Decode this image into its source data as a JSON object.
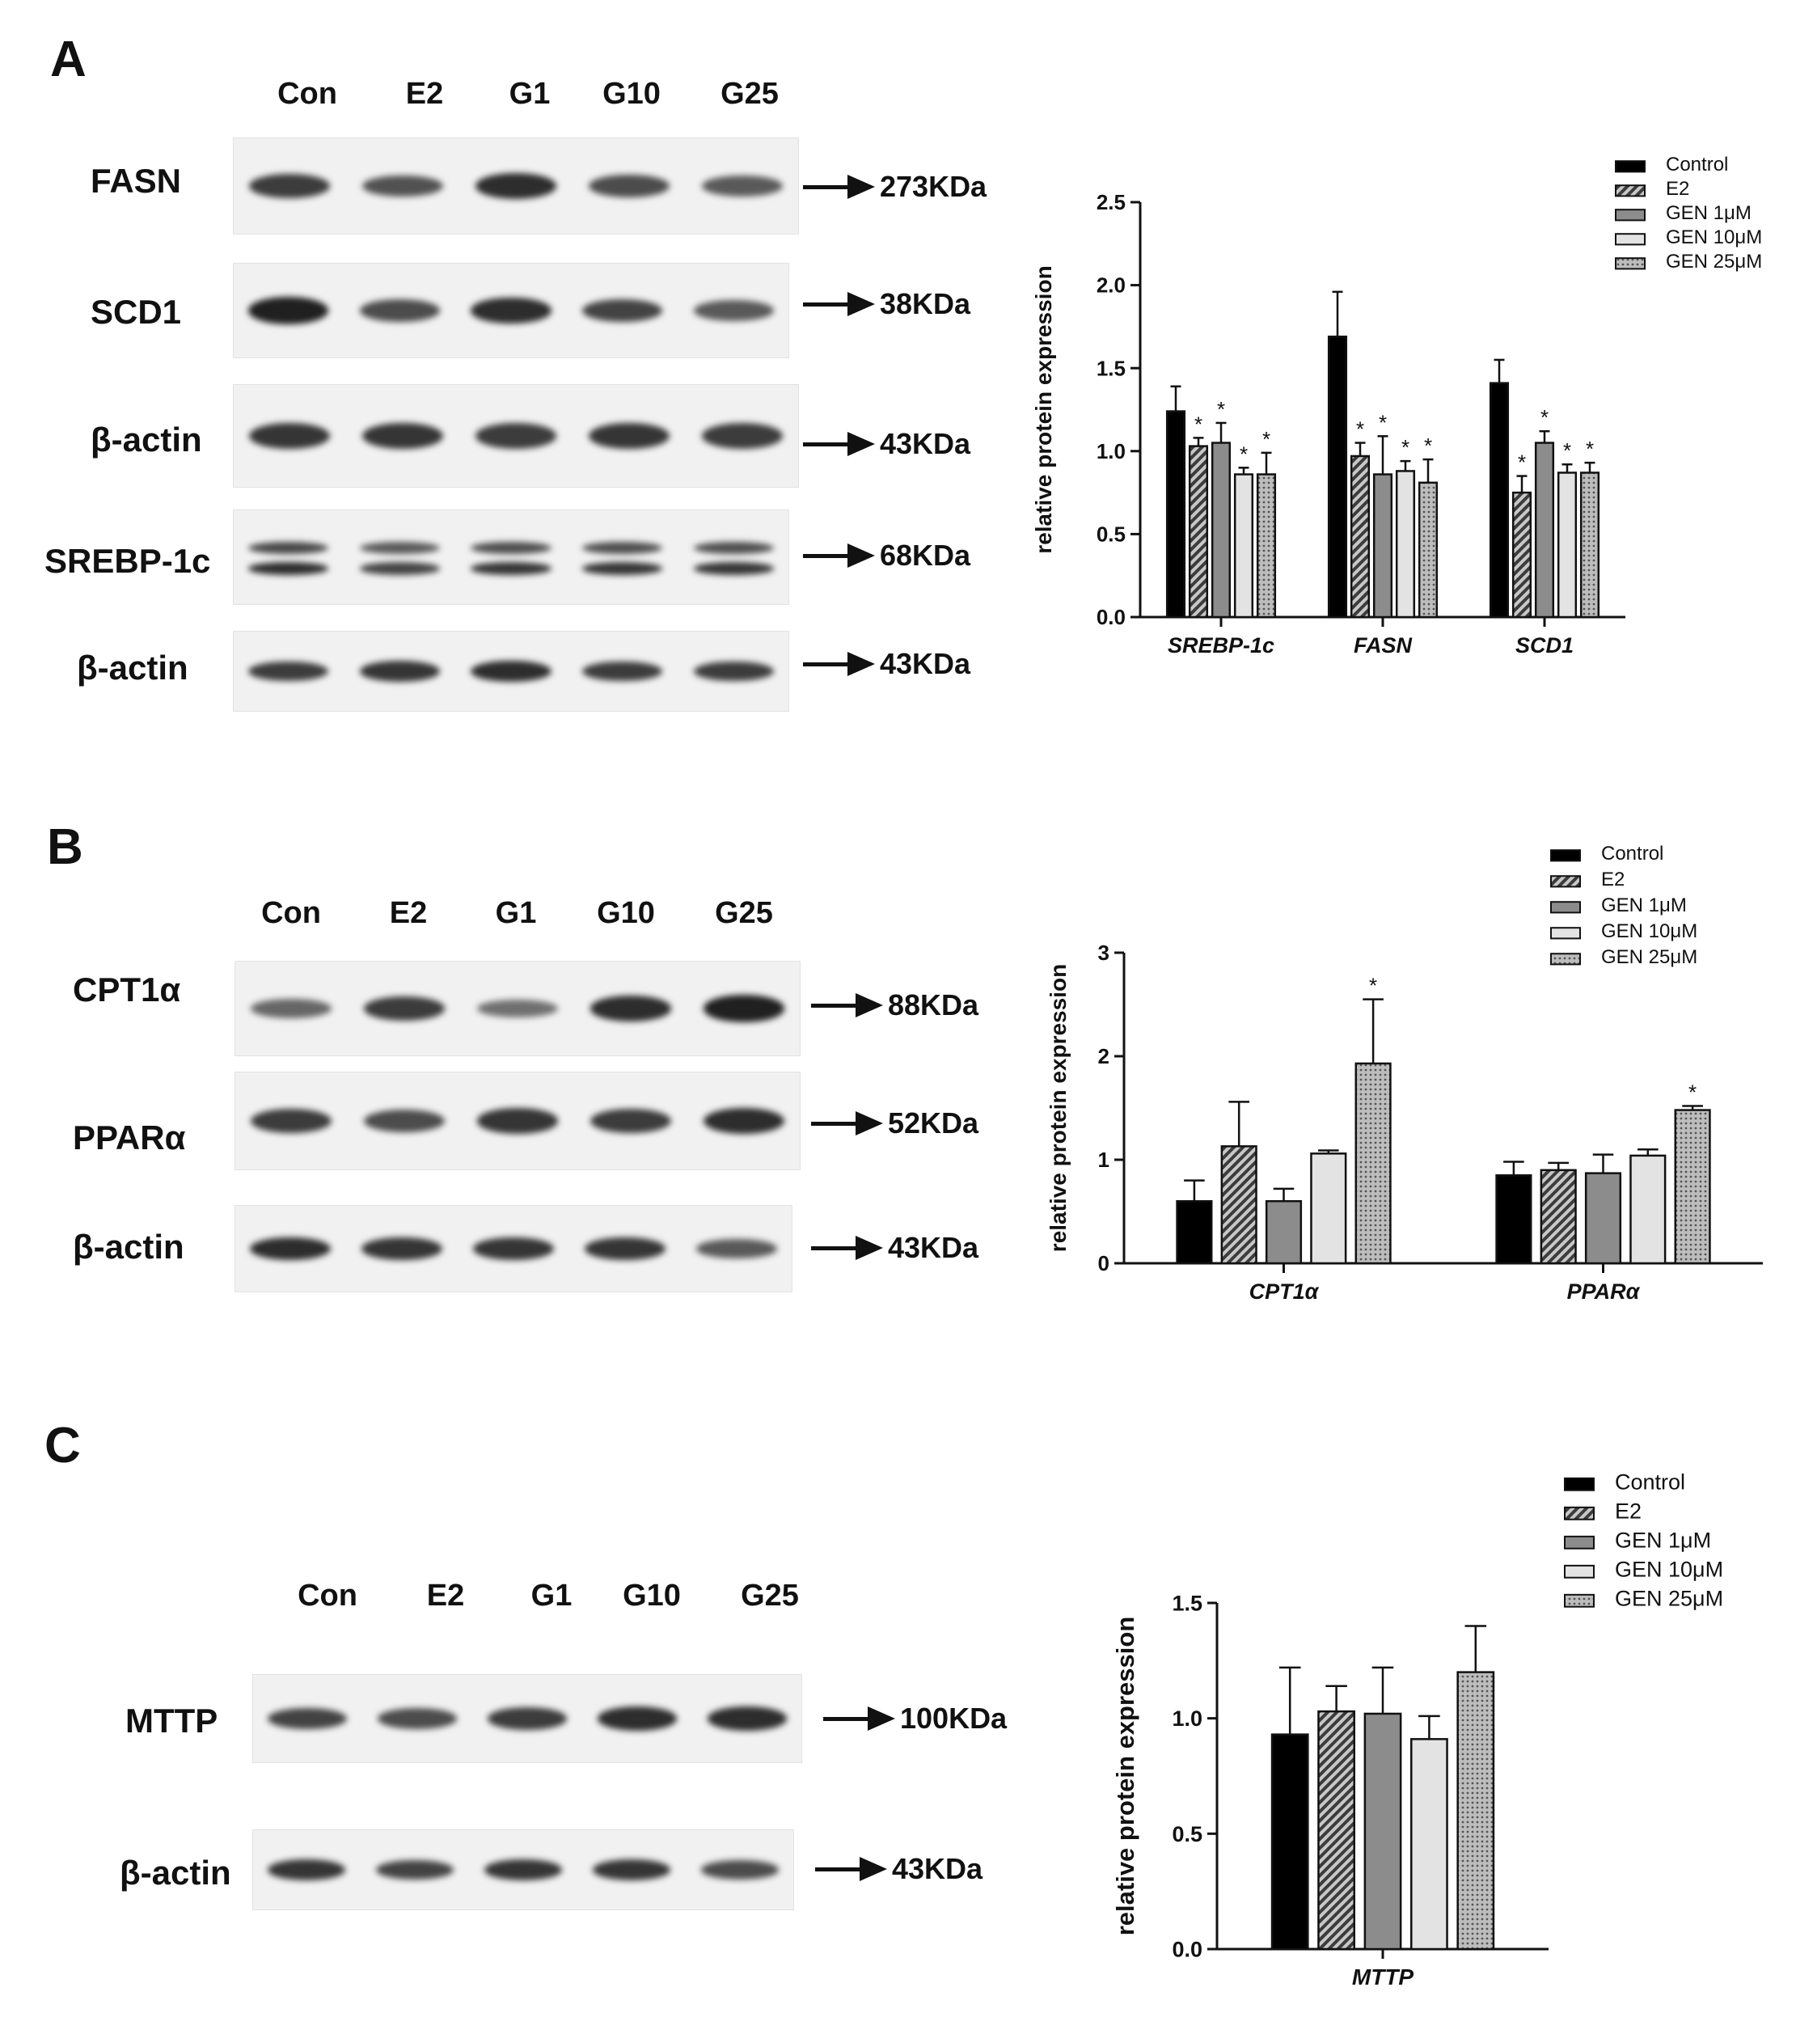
{
  "panels": [
    {
      "letter": "A",
      "lanes": [
        "Con",
        "E2",
        "G1",
        "G10",
        "G25"
      ],
      "blots": [
        {
          "protein": "FASN",
          "mw": "273KDa",
          "intensity": [
            0.8,
            0.65,
            0.9,
            0.7,
            0.6
          ],
          "double": false
        },
        {
          "protein": "SCD1",
          "mw": "38KDa",
          "intensity": [
            1.0,
            0.7,
            0.9,
            0.75,
            0.6
          ],
          "double": false
        },
        {
          "protein": "β-actin",
          "mw": "43KDa",
          "intensity": [
            0.85,
            0.85,
            0.8,
            0.85,
            0.8
          ],
          "double": false
        },
        {
          "protein": "SREBP-1c",
          "mw": "68KDa",
          "intensity": [
            0.9,
            0.75,
            0.85,
            0.85,
            0.85
          ],
          "double": true
        },
        {
          "protein": "β-actin",
          "mw": "43KDa",
          "intensity": [
            0.8,
            0.85,
            0.9,
            0.8,
            0.8
          ],
          "double": false
        }
      ]
    },
    {
      "letter": "B",
      "lanes": [
        "Con",
        "E2",
        "G1",
        "G10",
        "G25"
      ],
      "blots": [
        {
          "protein": "CPT1α",
          "mw": "88KDa",
          "intensity": [
            0.5,
            0.8,
            0.45,
            0.9,
            1.0
          ],
          "double": false
        },
        {
          "protein": "PPARα",
          "mw": "52KDa",
          "intensity": [
            0.8,
            0.7,
            0.85,
            0.8,
            0.9
          ],
          "double": false
        },
        {
          "protein": "β-actin",
          "mw": "43KDa",
          "intensity": [
            0.9,
            0.85,
            0.85,
            0.85,
            0.6
          ],
          "double": false
        }
      ]
    },
    {
      "letter": "C",
      "lanes": [
        "Con",
        "E2",
        "G1",
        "G10",
        "G25"
      ],
      "blots": [
        {
          "protein": "MTTP",
          "mw": "100KDa",
          "intensity": [
            0.75,
            0.7,
            0.8,
            0.9,
            0.9
          ],
          "double": false
        },
        {
          "protein": "β-actin",
          "mw": "43KDa",
          "intensity": [
            0.85,
            0.75,
            0.85,
            0.85,
            0.7
          ],
          "double": false
        }
      ]
    }
  ],
  "chart_data": [
    {
      "type": "bar",
      "ylabel": "relative protein expression",
      "ylim": [
        0,
        2.5
      ],
      "yticks": [
        "0.0",
        "0.5",
        "1.0",
        "1.5",
        "2.0",
        "2.5"
      ],
      "categories": [
        "SREBP-1c",
        "FASN",
        "SCD1"
      ],
      "series": [
        {
          "name": "Control",
          "values": [
            1.24,
            1.69,
            1.41
          ],
          "errors": [
            0.15,
            0.27,
            0.14
          ],
          "sig": [
            false,
            false,
            false
          ]
        },
        {
          "name": "E2",
          "values": [
            1.03,
            0.97,
            0.75
          ],
          "errors": [
            0.05,
            0.08,
            0.1
          ],
          "sig": [
            true,
            true,
            true
          ]
        },
        {
          "name": "GEN 1μM",
          "values": [
            1.05,
            0.86,
            1.05
          ],
          "errors": [
            0.12,
            0.23,
            0.07
          ],
          "sig": [
            true,
            true,
            true
          ]
        },
        {
          "name": "GEN 10μM",
          "values": [
            0.86,
            0.88,
            0.87
          ],
          "errors": [
            0.04,
            0.06,
            0.05
          ],
          "sig": [
            true,
            true,
            true
          ]
        },
        {
          "name": "GEN 25μM",
          "values": [
            0.86,
            0.81,
            0.87
          ],
          "errors": [
            0.13,
            0.14,
            0.06
          ],
          "sig": [
            true,
            true,
            true
          ]
        }
      ],
      "legend": "top-right"
    },
    {
      "type": "bar",
      "ylabel": "relative protein expression",
      "ylim": [
        0,
        3
      ],
      "yticks": [
        "0",
        "1",
        "2",
        "3"
      ],
      "categories": [
        "CPT1α",
        "PPARα"
      ],
      "series": [
        {
          "name": "Control",
          "values": [
            0.6,
            0.85
          ],
          "errors": [
            0.2,
            0.13
          ],
          "sig": [
            false,
            false
          ]
        },
        {
          "name": "E2",
          "values": [
            1.13,
            0.9
          ],
          "errors": [
            0.43,
            0.07
          ],
          "sig": [
            false,
            false
          ]
        },
        {
          "name": "GEN  1μM",
          "values": [
            0.6,
            0.87
          ],
          "errors": [
            0.12,
            0.18
          ],
          "sig": [
            false,
            false
          ]
        },
        {
          "name": "GEN  10μM",
          "values": [
            1.06,
            1.04
          ],
          "errors": [
            0.03,
            0.06
          ],
          "sig": [
            false,
            false
          ]
        },
        {
          "name": "GEN  25μM",
          "values": [
            1.93,
            1.48
          ],
          "errors": [
            0.62,
            0.04
          ],
          "sig": [
            true,
            true
          ]
        }
      ],
      "legend": "top-right"
    },
    {
      "type": "bar",
      "ylabel": "relative protein expression",
      "ylim": [
        0,
        1.5
      ],
      "yticks": [
        "0.0",
        "0.5",
        "1.0",
        "1.5"
      ],
      "categories": [
        "MTTP"
      ],
      "series": [
        {
          "name": "Control",
          "values": [
            0.93
          ],
          "errors": [
            0.29
          ],
          "sig": [
            false
          ]
        },
        {
          "name": "E2",
          "values": [
            1.03
          ],
          "errors": [
            0.11
          ],
          "sig": [
            false
          ]
        },
        {
          "name": "GEN  1μM",
          "values": [
            1.02
          ],
          "errors": [
            0.2
          ],
          "sig": [
            false
          ]
        },
        {
          "name": "GEN  10μM",
          "values": [
            0.91
          ],
          "errors": [
            0.1
          ],
          "sig": [
            false
          ]
        },
        {
          "name": "GEN  25μM",
          "values": [
            1.2
          ],
          "errors": [
            0.2
          ],
          "sig": [
            false
          ]
        }
      ],
      "legend": "top-right"
    }
  ],
  "sig_symbol": "*",
  "colors": {
    "control": "#000000",
    "e2": "#6f6f6f",
    "gen1": "#8c8c8c",
    "gen10": "#e3e3e3",
    "gen25": "#b2b2b2"
  }
}
